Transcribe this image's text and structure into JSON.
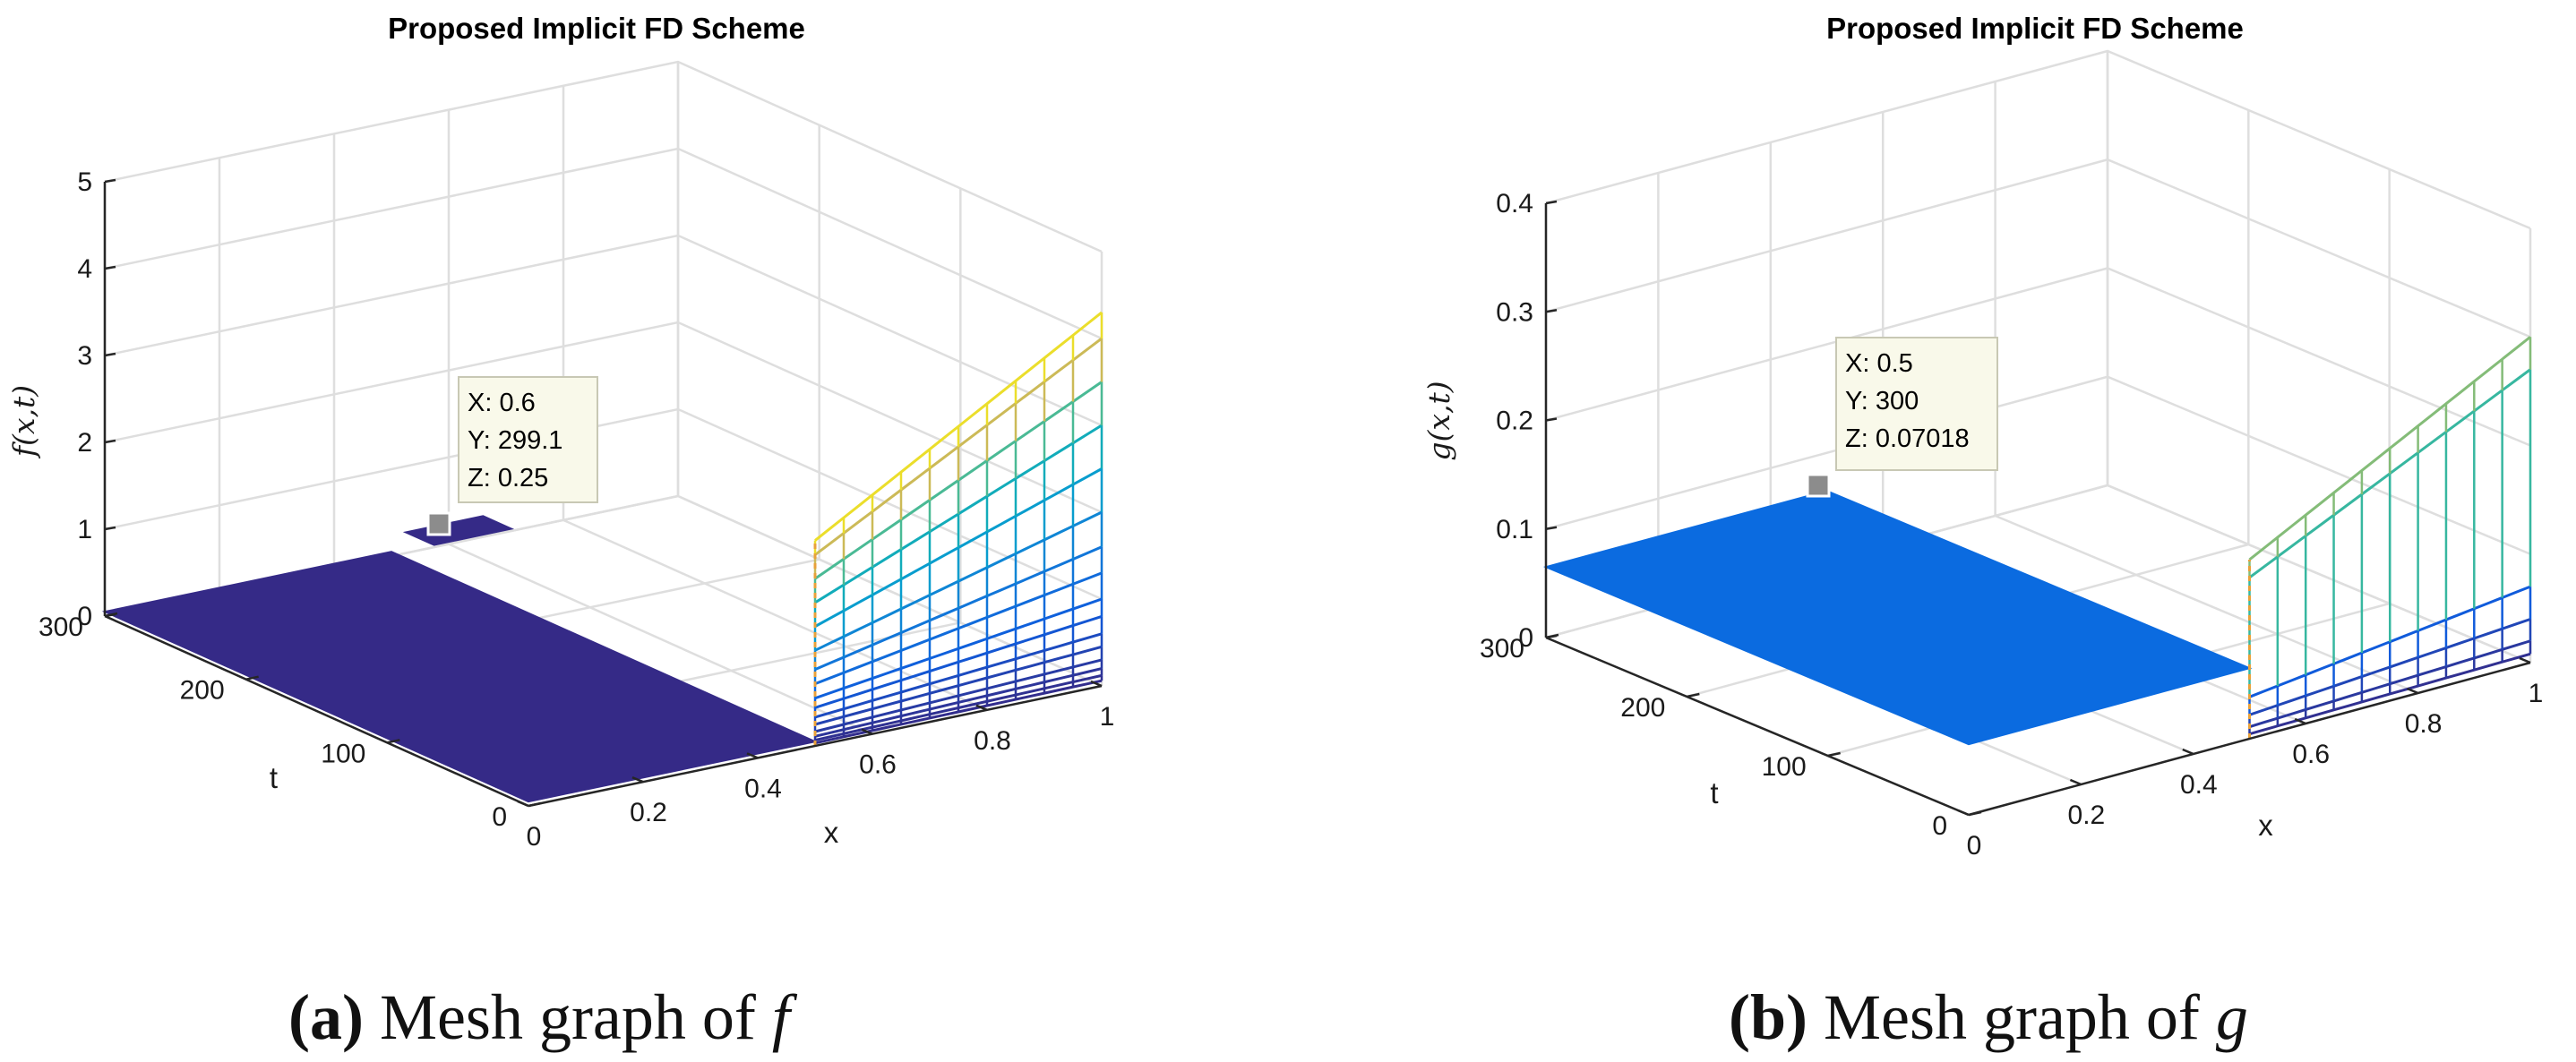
{
  "chart_data": [
    {
      "type": "mesh3d",
      "title": "Proposed Implicit FD Scheme",
      "xlabel": "x",
      "ylabel": "t",
      "zlabel": "f(x,t)",
      "xlim": [
        0,
        1
      ],
      "ylim": [
        0,
        300
      ],
      "zlim": [
        0,
        5
      ],
      "xticks": [
        "0",
        "0.2",
        "0.4",
        "0.6",
        "0.8",
        "1"
      ],
      "yticks": [
        "0",
        "100",
        "200",
        "300"
      ],
      "zticks": [
        "0",
        "1",
        "2",
        "3",
        "4",
        "5"
      ],
      "grid": true,
      "colormap": "parula",
      "mesh_x": [
        0.5,
        0.55,
        0.6,
        0.65,
        0.7,
        0.75,
        0.8,
        0.85,
        0.9,
        0.95,
        1.0
      ],
      "mesh_levels_at_x1": [
        0.06,
        0.12,
        0.2,
        0.3,
        0.45,
        0.6,
        0.8,
        1.0,
        1.3,
        1.6,
        2.0,
        2.5,
        3.0,
        3.5,
        4.0,
        4.3
      ],
      "datatip": {
        "x_label": "X: 0.6",
        "y_label": "Y: 299.1",
        "z_label": "Z: 0.25"
      },
      "caption_tag": "(a)",
      "caption_text": "Mesh graph of",
      "caption_symbol": "f"
    },
    {
      "type": "mesh3d",
      "title": "Proposed Implicit FD Scheme",
      "xlabel": "x",
      "ylabel": "t",
      "zlabel": "g(x,t)",
      "xlim": [
        0,
        1
      ],
      "ylim": [
        0,
        300
      ],
      "zlim": [
        0,
        0.4
      ],
      "xticks": [
        "0",
        "0.2",
        "0.4",
        "0.6",
        "0.8",
        "1"
      ],
      "yticks": [
        "0",
        "100",
        "200",
        "300"
      ],
      "zticks": [
        "0",
        "0.1",
        "0.2",
        "0.3",
        "0.4"
      ],
      "grid": true,
      "colormap": "parula",
      "mesh_x": [
        0.5,
        0.55,
        0.6,
        0.65,
        0.7,
        0.75,
        0.8,
        0.85,
        0.9,
        0.95,
        1.0
      ],
      "mesh_levels_at_x1": [
        0.008,
        0.02,
        0.04,
        0.07,
        0.27,
        0.3
      ],
      "datatip": {
        "x_label": "X: 0.5",
        "y_label": "Y: 300",
        "z_label": "Z: 0.07018"
      },
      "caption_tag": "(b)",
      "caption_text": "Mesh graph of",
      "caption_symbol": "g"
    }
  ]
}
